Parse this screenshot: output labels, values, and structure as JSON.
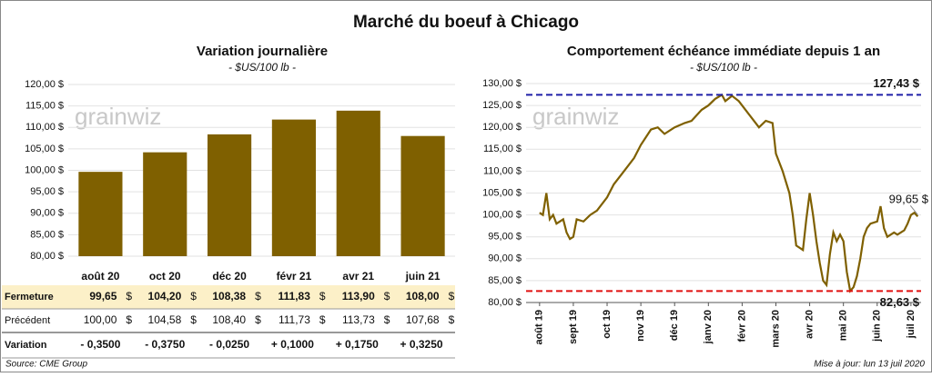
{
  "title": "Marché du boeuf à Chicago",
  "watermark": "grainwiz",
  "source": "Source: CME Group",
  "updated": "Mise à jour: lun 13 juil 2020",
  "chart_data": [
    {
      "type": "bar",
      "title": "Variation journalière",
      "subtitle": "- $US/100 lb -",
      "categories": [
        "août 20",
        "oct 20",
        "déc 20",
        "févr 21",
        "avr 21",
        "juin 21"
      ],
      "values": [
        99.65,
        104.2,
        108.38,
        111.83,
        113.9,
        108.0
      ],
      "color": "#7f6000",
      "grid": true,
      "ylim": [
        80,
        120
      ],
      "yticks": [
        {
          "value": 80,
          "label": "80,00 $"
        },
        {
          "value": 85,
          "label": "85,00 $"
        },
        {
          "value": 90,
          "label": "90,00 $"
        },
        {
          "value": 95,
          "label": "95,00 $"
        },
        {
          "value": 100,
          "label": "100,00 $"
        },
        {
          "value": 105,
          "label": "105,00 $"
        },
        {
          "value": 110,
          "label": "110,00 $"
        },
        {
          "value": 115,
          "label": "115,00 $"
        },
        {
          "value": 120,
          "label": "120,00 $"
        }
      ]
    },
    {
      "type": "line",
      "title": "Comportement  échéance immédiate depuis 1 an",
      "subtitle": "- $US/100 lb -",
      "x": [
        0,
        0.1,
        0.2,
        0.3,
        0.4,
        0.5,
        0.7,
        0.8,
        0.9,
        1.0,
        1.1,
        1.3,
        1.5,
        1.7,
        2.0,
        2.2,
        2.5,
        2.8,
        3.0,
        3.3,
        3.5,
        3.7,
        4.0,
        4.3,
        4.5,
        4.8,
        5.0,
        5.2,
        5.4,
        5.5,
        5.7,
        5.9,
        6.1,
        6.3,
        6.5,
        6.7,
        6.9,
        7.0,
        7.2,
        7.4,
        7.5,
        7.6,
        7.8,
        7.9,
        8.0,
        8.1,
        8.2,
        8.3,
        8.4,
        8.5,
        8.6,
        8.7,
        8.8,
        8.9,
        9.0,
        9.1,
        9.2,
        9.3,
        9.4,
        9.5,
        9.6,
        9.7,
        9.8,
        10.0,
        10.1,
        10.2,
        10.3,
        10.5,
        10.6,
        10.8,
        10.9,
        11.0,
        11.1,
        11.2
      ],
      "series": [
        {
          "name": "Échéance immédiate",
          "color": "#7f6000",
          "values": [
            100.5,
            100,
            105,
            99,
            100,
            98,
            99,
            96,
            94.5,
            95,
            99,
            98.5,
            100,
            101,
            104,
            107,
            110,
            113,
            116,
            119.5,
            120,
            118.5,
            120,
            121,
            121.5,
            124,
            125,
            126.5,
            127.43,
            126,
            127.2,
            126,
            124,
            122,
            120,
            121.5,
            121,
            114,
            110,
            105,
            100,
            93,
            92,
            99,
            105,
            100,
            94,
            89,
            85,
            84,
            91,
            96,
            94,
            95.5,
            94,
            87,
            82.63,
            83.5,
            86,
            90,
            95,
            97,
            98,
            98.5,
            102,
            97,
            95,
            96,
            95.5,
            96.5,
            98,
            100,
            100.5,
            99.65
          ]
        }
      ],
      "grid": true,
      "xlim": [
        -0.4,
        11.3
      ],
      "xticks": [
        {
          "value": 0,
          "label": "août 19"
        },
        {
          "value": 1,
          "label": "sept 19"
        },
        {
          "value": 2,
          "label": "oct 19"
        },
        {
          "value": 3,
          "label": "nov 19"
        },
        {
          "value": 4,
          "label": "déc 19"
        },
        {
          "value": 5,
          "label": "janv 20"
        },
        {
          "value": 6,
          "label": "févr 20"
        },
        {
          "value": 7,
          "label": "mars 20"
        },
        {
          "value": 8,
          "label": "avr 20"
        },
        {
          "value": 9,
          "label": "mai 20"
        },
        {
          "value": 10,
          "label": "juin 20"
        },
        {
          "value": 11,
          "label": "juil 20"
        }
      ],
      "ylim": [
        80,
        130
      ],
      "yticks": [
        {
          "value": 80,
          "label": "80,00 $"
        },
        {
          "value": 85,
          "label": "85,00 $"
        },
        {
          "value": 90,
          "label": "90,00 $"
        },
        {
          "value": 95,
          "label": "95,00 $"
        },
        {
          "value": 100,
          "label": "100,00 $"
        },
        {
          "value": 105,
          "label": "105,00 $"
        },
        {
          "value": 110,
          "label": "110,00 $"
        },
        {
          "value": 115,
          "label": "115,00 $"
        },
        {
          "value": 120,
          "label": "120,00 $"
        },
        {
          "value": 125,
          "label": "125,00 $"
        },
        {
          "value": 130,
          "label": "130,00 $"
        }
      ],
      "hlines": [
        {
          "value": 127.43,
          "label": "127,43 $",
          "color": "#1f1fa8"
        },
        {
          "value": 82.63,
          "label": "82,63 $",
          "color": "#e01010"
        }
      ],
      "end_label": {
        "value": 99.65,
        "label": "99,65 $"
      }
    }
  ],
  "table": {
    "rows": [
      {
        "label": "Fermeture",
        "values": [
          "99,65",
          "104,20",
          "108,38",
          "111,83",
          "113,90",
          "108,00"
        ],
        "unit": "$"
      },
      {
        "label": "Précédent",
        "values": [
          "100,00",
          "104,58",
          "108,40",
          "111,73",
          "113,73",
          "107,68"
        ],
        "unit": "$"
      },
      {
        "label": "Variation",
        "values": [
          "- 0,3500",
          "- 0,3750",
          "- 0,0250",
          "+ 0,1000",
          "+ 0,1750",
          "+ 0,3250"
        ]
      }
    ]
  }
}
